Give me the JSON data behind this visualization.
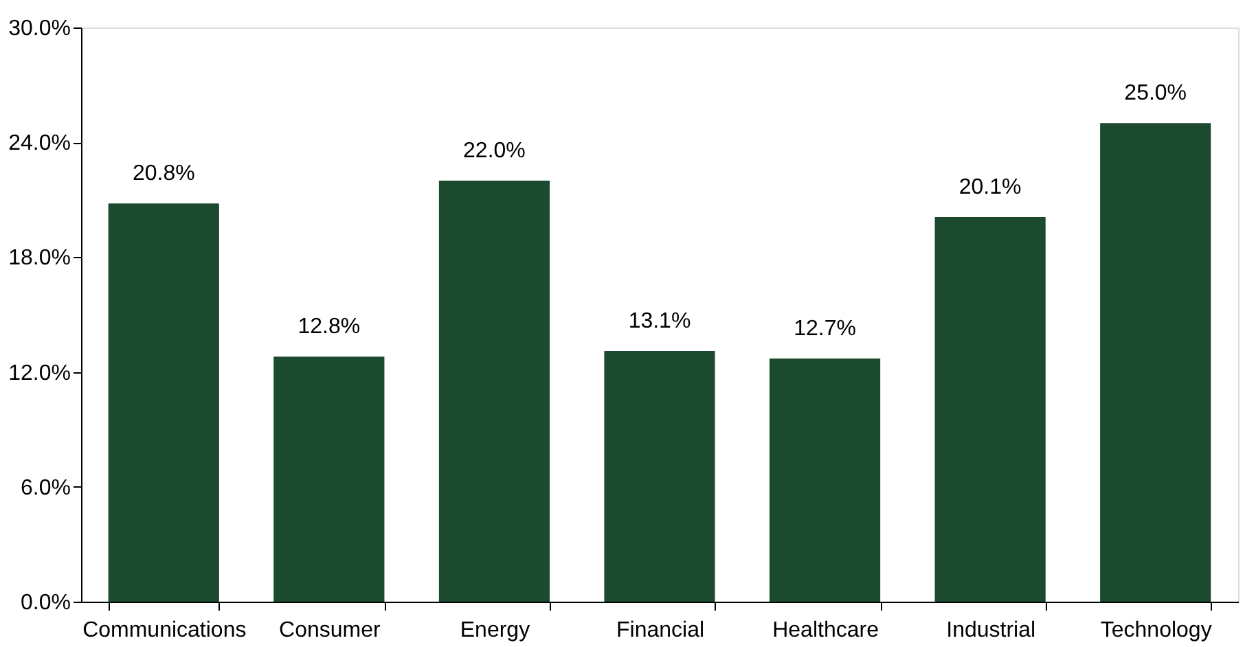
{
  "chart_data": {
    "type": "bar",
    "categories": [
      "Communications",
      "Consumer",
      "Energy",
      "Financial",
      "Healthcare",
      "Industrial",
      "Technology"
    ],
    "values": [
      20.8,
      12.8,
      22.0,
      13.1,
      12.7,
      20.1,
      25.0
    ],
    "value_labels": [
      "20.8%",
      "12.8%",
      "22.0%",
      "13.1%",
      "12.7%",
      "20.1%",
      "25.0%"
    ],
    "color": "#1b4a2e",
    "ylim": [
      0,
      30
    ],
    "yticks": [
      {
        "value": 0,
        "label": "0.0%"
      },
      {
        "value": 6,
        "label": "6.0%"
      },
      {
        "value": 12,
        "label": "12.0%"
      },
      {
        "value": 18,
        "label": "18.0%"
      },
      {
        "value": 24,
        "label": "24.0%"
      },
      {
        "value": 30,
        "label": "30.0%"
      }
    ],
    "grid": false
  }
}
